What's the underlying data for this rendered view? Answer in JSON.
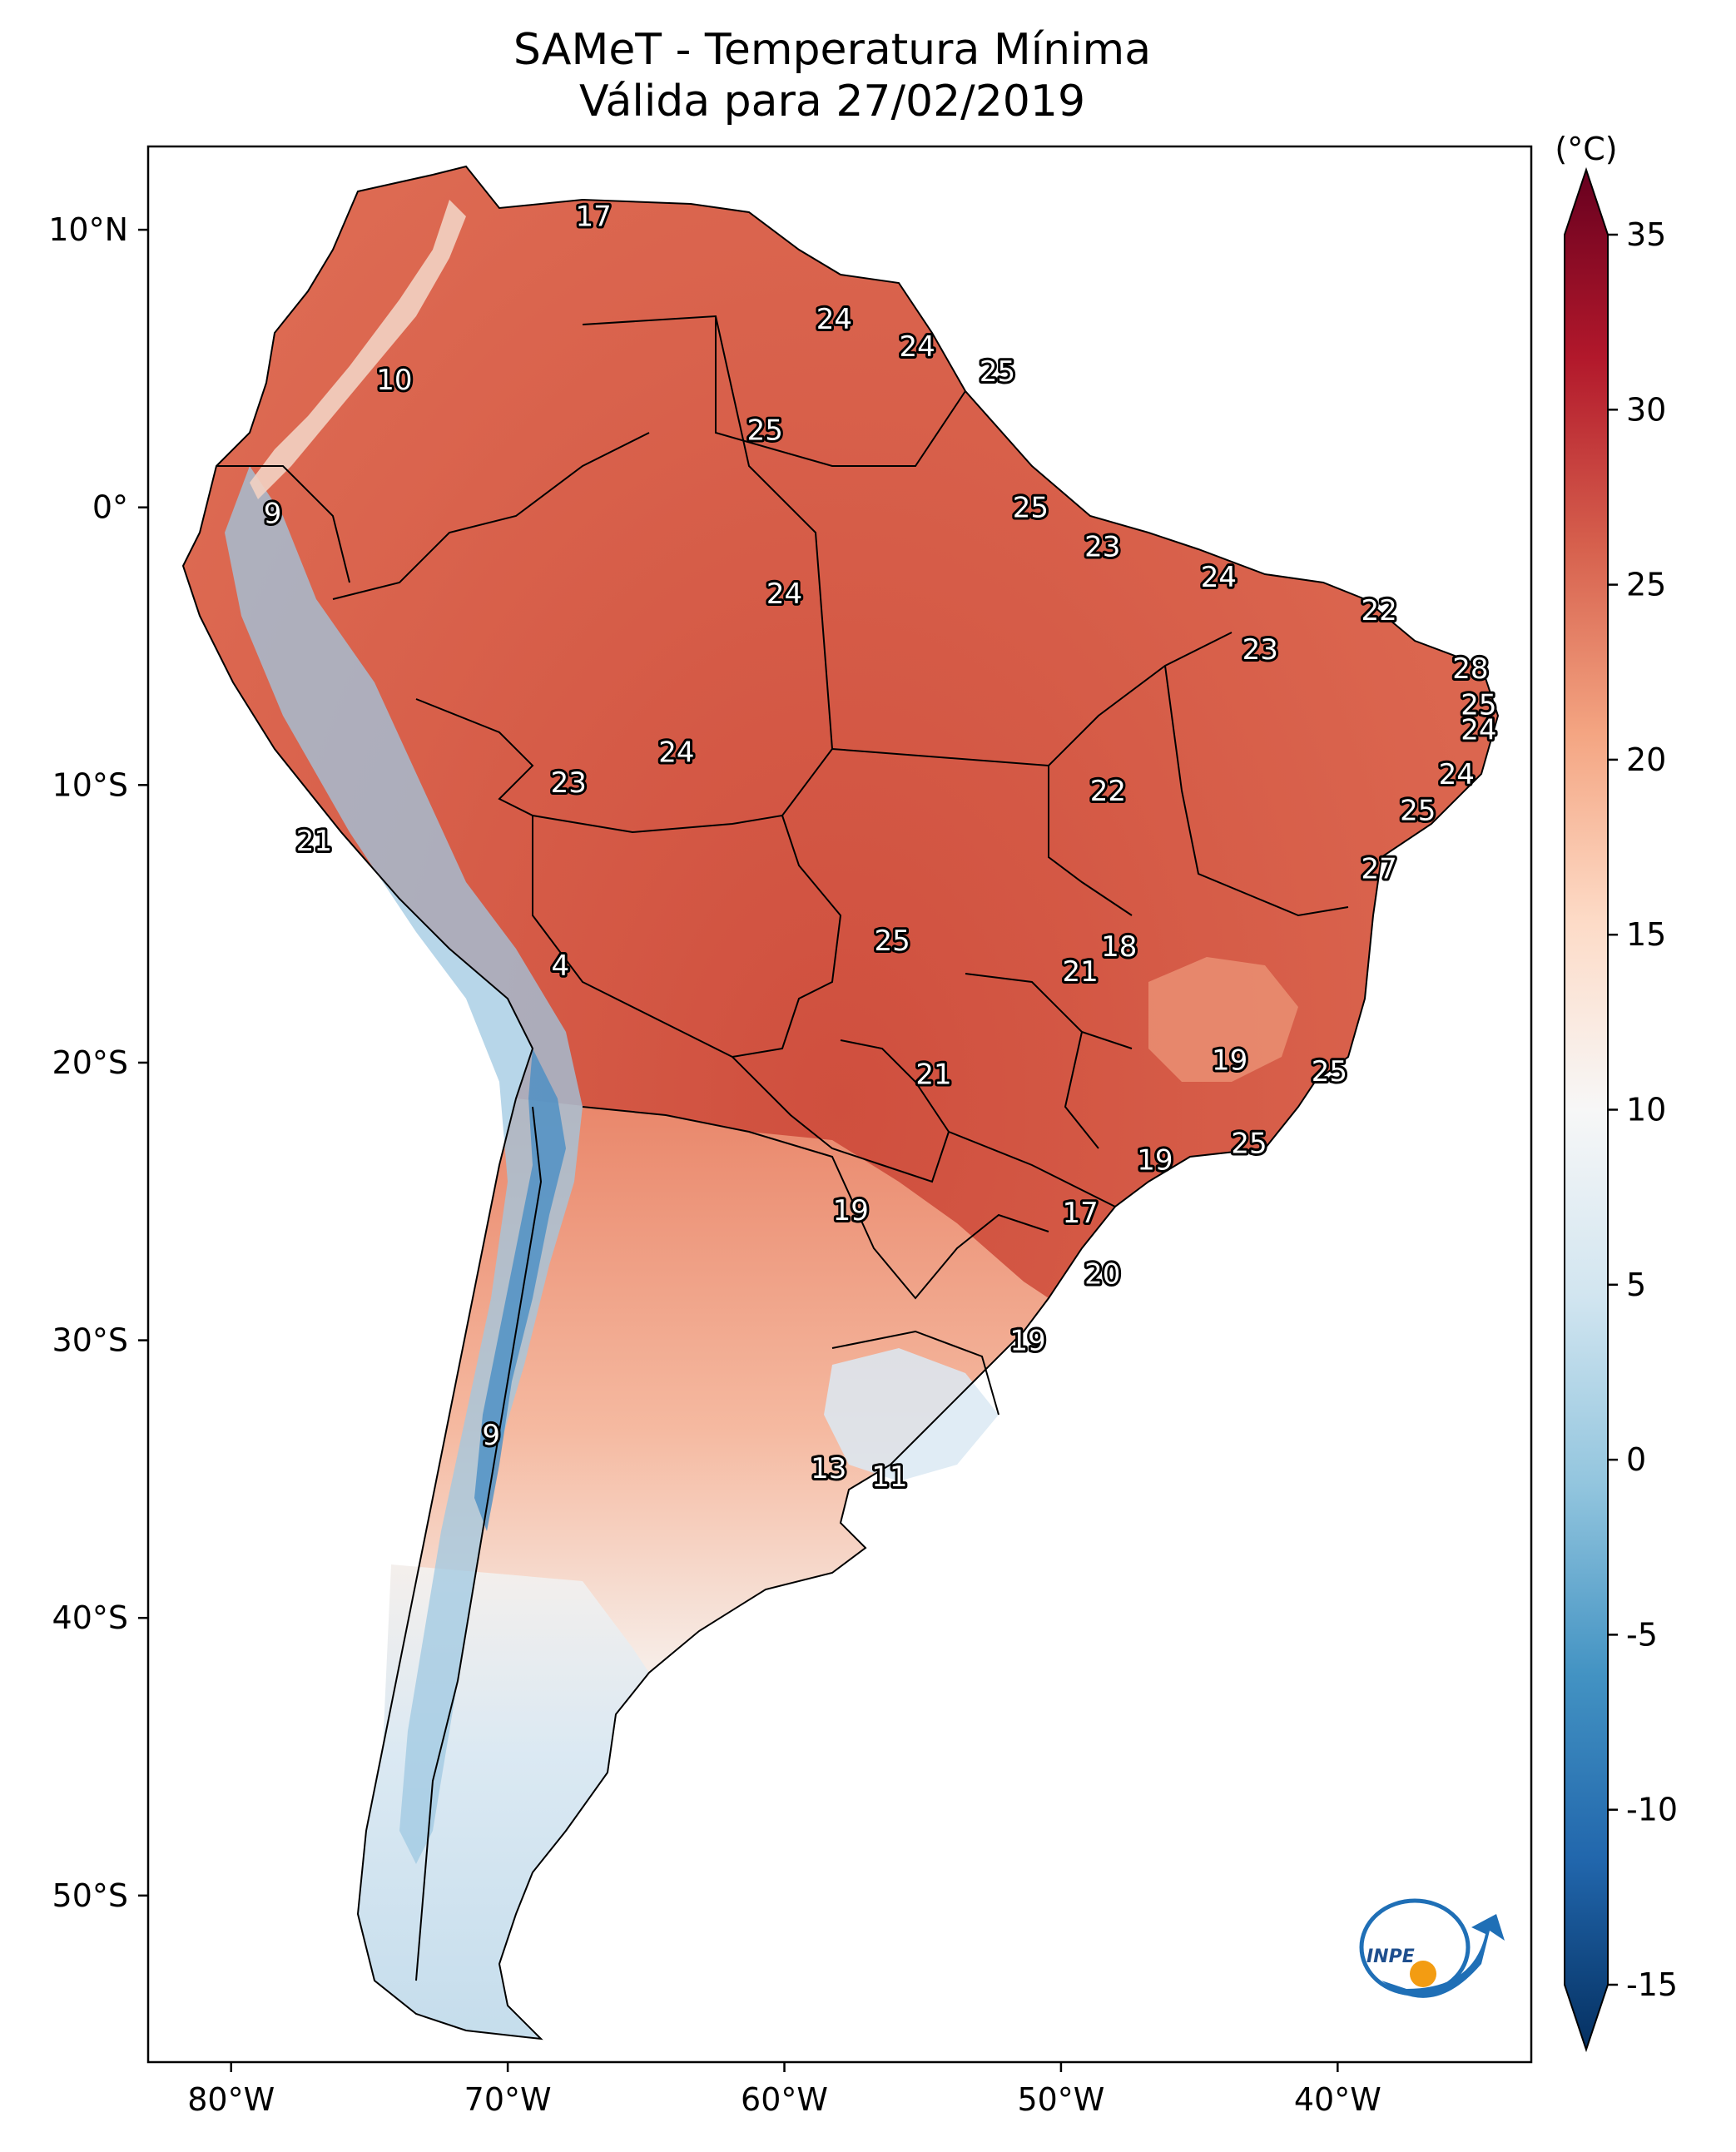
{
  "title_line1": "SAMeT - Temperatura Mínima",
  "title_line2": "Válida para 27/02/2019",
  "colorbar": {
    "unit": "(°C)",
    "ticks": [
      "35",
      "30",
      "25",
      "20",
      "15",
      "10",
      "5",
      "0",
      "-5",
      "-10",
      "-15"
    ],
    "tick_values": [
      35,
      30,
      25,
      20,
      15,
      10,
      5,
      0,
      -5,
      -10,
      -15
    ],
    "range": [
      -15,
      35
    ],
    "colors": [
      "#053061",
      "#2166ac",
      "#4393c3",
      "#92c5de",
      "#d1e5f0",
      "#f7f7f7",
      "#fddbc7",
      "#f4a582",
      "#d6604d",
      "#b2182b",
      "#67001f"
    ]
  },
  "axes": {
    "lon_labels": [
      "80°W",
      "70°W",
      "60°W",
      "50°W",
      "40°W"
    ],
    "lon_values": [
      -80,
      -70,
      -60,
      -50,
      -40
    ],
    "lat_labels": [
      "10°N",
      "0°",
      "10°S",
      "20°S",
      "30°S",
      "40°S",
      "50°S"
    ],
    "lat_values": [
      10,
      0,
      -10,
      -20,
      -30,
      -40,
      -50
    ],
    "lon_range": [
      -83,
      -33
    ],
    "lat_range": [
      -56,
      13
    ]
  },
  "city_values": [
    {
      "value": "17",
      "lon": -66.9,
      "lat": 10.5
    },
    {
      "value": "24",
      "lon": -58.2,
      "lat": 6.8
    },
    {
      "value": "24",
      "lon": -55.2,
      "lat": 5.8
    },
    {
      "value": "25",
      "lon": -52.3,
      "lat": 4.9
    },
    {
      "value": "10",
      "lon": -74.1,
      "lat": 4.6
    },
    {
      "value": "25",
      "lon": -60.7,
      "lat": 2.8
    },
    {
      "value": "9",
      "lon": -78.5,
      "lat": -0.2
    },
    {
      "value": "25",
      "lon": -51.1,
      "lat": 0.0
    },
    {
      "value": "23",
      "lon": -48.5,
      "lat": -1.4
    },
    {
      "value": "24",
      "lon": -60.0,
      "lat": -3.1
    },
    {
      "value": "24",
      "lon": -44.3,
      "lat": -2.5
    },
    {
      "value": "22",
      "lon": -38.5,
      "lat": -3.7
    },
    {
      "value": "23",
      "lon": -42.8,
      "lat": -5.1
    },
    {
      "value": "28",
      "lon": -35.2,
      "lat": -5.8
    },
    {
      "value": "25",
      "lon": -34.9,
      "lat": -7.1
    },
    {
      "value": "24",
      "lon": -34.9,
      "lat": -8.0
    },
    {
      "value": "24",
      "lon": -63.9,
      "lat": -8.8
    },
    {
      "value": "23",
      "lon": -67.8,
      "lat": -9.9
    },
    {
      "value": "22",
      "lon": -48.3,
      "lat": -10.2
    },
    {
      "value": "24",
      "lon": -35.7,
      "lat": -9.6
    },
    {
      "value": "25",
      "lon": -37.1,
      "lat": -10.9
    },
    {
      "value": "21",
      "lon": -77.0,
      "lat": -12.0
    },
    {
      "value": "27",
      "lon": -38.5,
      "lat": -13.0
    },
    {
      "value": "25",
      "lon": -56.1,
      "lat": -15.6
    },
    {
      "value": "18",
      "lon": -47.9,
      "lat": -15.8
    },
    {
      "value": "21",
      "lon": -49.3,
      "lat": -16.7
    },
    {
      "value": "4",
      "lon": -68.1,
      "lat": -16.5
    },
    {
      "value": "19",
      "lon": -43.9,
      "lat": -19.9
    },
    {
      "value": "21",
      "lon": -54.6,
      "lat": -20.4
    },
    {
      "value": "25",
      "lon": -40.3,
      "lat": -20.3
    },
    {
      "value": "25",
      "lon": -43.2,
      "lat": -22.9
    },
    {
      "value": "19",
      "lon": -46.6,
      "lat": -23.5
    },
    {
      "value": "19",
      "lon": -57.6,
      "lat": -25.3
    },
    {
      "value": "17",
      "lon": -49.3,
      "lat": -25.4
    },
    {
      "value": "20",
      "lon": -48.5,
      "lat": -27.6
    },
    {
      "value": "19",
      "lon": -51.2,
      "lat": -30.0
    },
    {
      "value": "9",
      "lon": -70.6,
      "lat": -33.4
    },
    {
      "value": "13",
      "lon": -58.4,
      "lat": -34.6
    },
    {
      "value": "11",
      "lon": -56.2,
      "lat": -34.9
    }
  ],
  "logo_text": "INPE"
}
